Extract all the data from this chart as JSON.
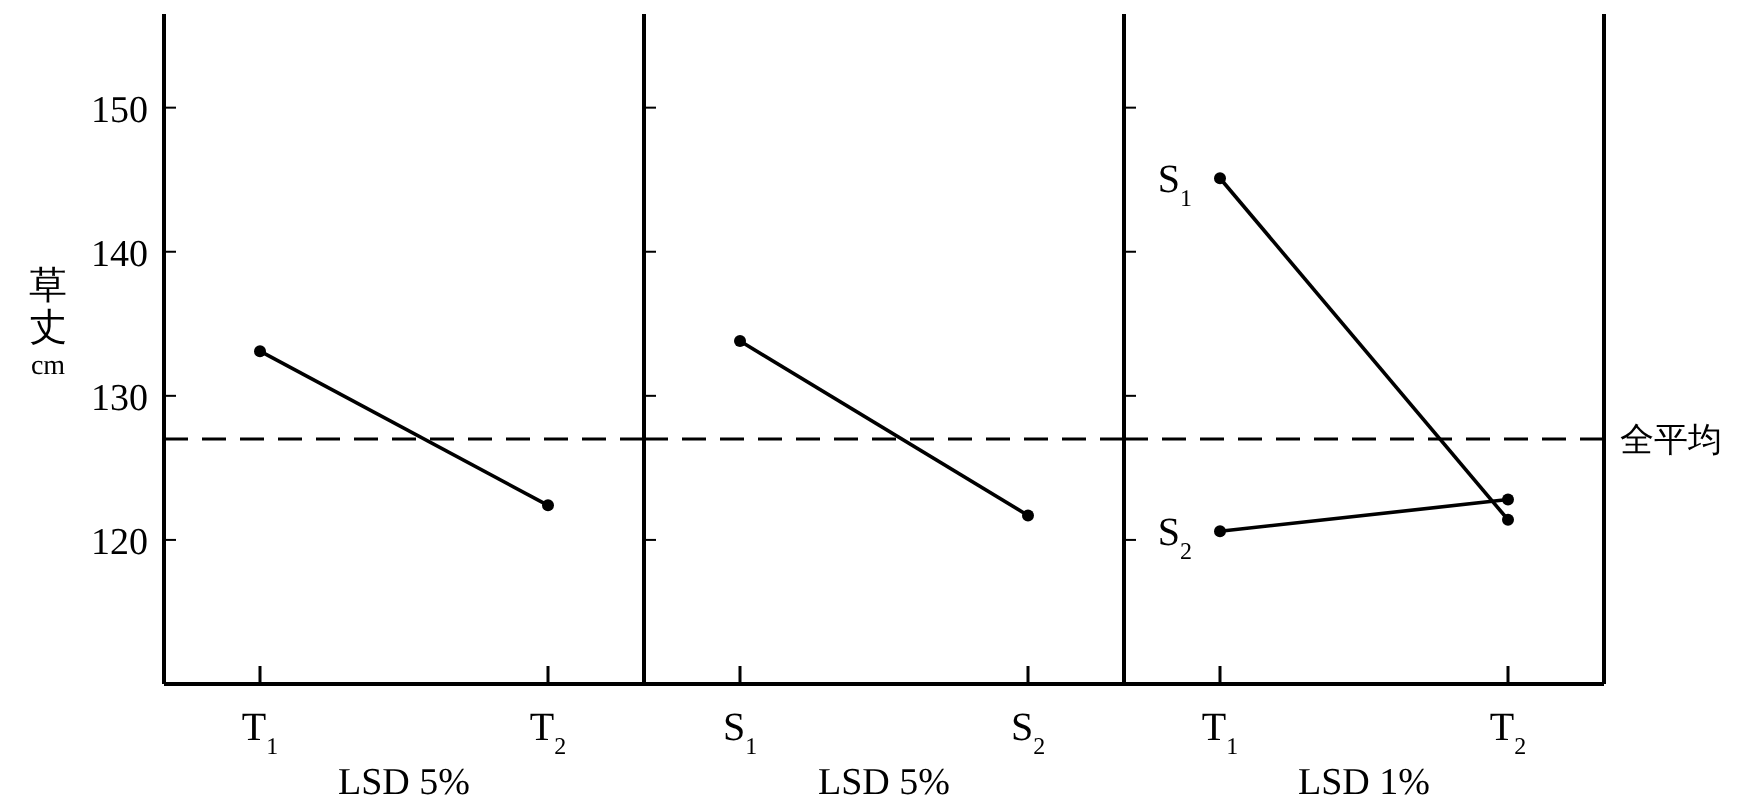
{
  "chart_data": [
    {
      "type": "line",
      "categories": [
        "T$_{1}$",
        "T$_{2}$"
      ],
      "values": [
        133.1,
        122.4
      ],
      "color": "#000000",
      "marker": "circle",
      "xlabel": "LSD 5%",
      "ylabel": "草丈 cm",
      "ylim": [
        110,
        156.5
      ],
      "yticks": [
        120,
        130,
        140,
        150
      ],
      "ref_lines": [
        {
          "axis": "y",
          "value": 127.0,
          "line_style": "dashed"
        }
      ]
    },
    {
      "type": "line",
      "categories": [
        "S$_{1}$",
        "S$_{2}$"
      ],
      "values": [
        133.8,
        121.7
      ],
      "color": "#000000",
      "marker": "circle",
      "xlabel": "LSD 5%",
      "ylim": [
        110,
        156.5
      ],
      "yticks": [
        120,
        130,
        140,
        150
      ],
      "tick_labels": "x",
      "ref_lines": [
        {
          "axis": "y",
          "value": 127.0,
          "line_style": "dashed"
        }
      ]
    },
    {
      "type": "line",
      "categories": [
        "T$_{1}$",
        "T$_{2}$"
      ],
      "marker": "circle",
      "xlabel": "LSD 1%",
      "ylim": [
        110,
        156.5
      ],
      "yticks": [
        120,
        130,
        140,
        150
      ],
      "tick_labels": "x",
      "series": [
        {
          "name": "S$_{1}$",
          "color": "#000000",
          "values": [
            145.1,
            121.4
          ]
        },
        {
          "name": "S$_{2}$",
          "color": "#000000",
          "values": [
            120.6,
            122.8
          ]
        }
      ],
      "ref_lines": [
        {
          "axis": "y",
          "value": 127.0,
          "label": "全平均",
          "line_style": "dashed"
        }
      ]
    }
  ]
}
